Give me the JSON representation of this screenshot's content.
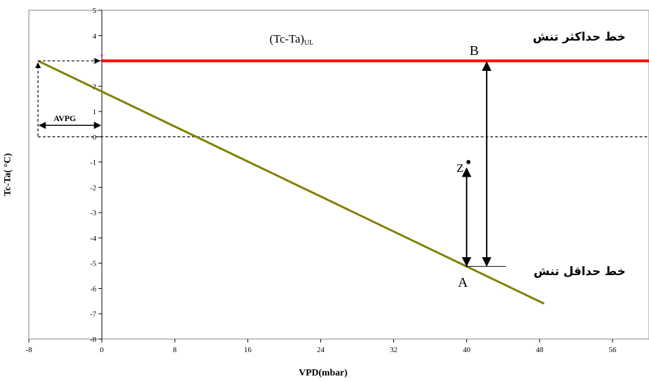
{
  "chart_data": {
    "type": "line",
    "title": "",
    "xlabel": "VPD(mbar)",
    "ylabel": "Tc-Ta( °C)",
    "xlim": [
      -8,
      60
    ],
    "ylim": [
      -8,
      5
    ],
    "x_ticks": [
      -8,
      0,
      8,
      16,
      24,
      32,
      40,
      48,
      56
    ],
    "y_ticks": [
      5,
      4,
      3,
      2,
      1,
      0,
      -1,
      -2,
      -3,
      -4,
      -5,
      -6,
      -7,
      -8
    ],
    "series": [
      {
        "name": "",
        "color": "#ff0000",
        "points": [
          [
            0,
            3
          ],
          [
            60,
            3
          ]
        ]
      },
      {
        "name": "",
        "color": "#808000",
        "points": [
          [
            -7,
            3
          ],
          [
            48.5,
            -6.6
          ]
        ]
      }
    ],
    "reference_line_y": 0,
    "annotations": {
      "upper_line_label": "(Tc-Ta)",
      "upper_line_label_sub": "UL",
      "upper_right_label": "خط حداکثر تنش",
      "lower_right_label": "خط حداقل تنش",
      "point_A": "A",
      "point_B": "B",
      "point_Z": "Z",
      "avpg": "AVPG"
    },
    "point_Z_xy": [
      40.2,
      -1
    ],
    "point_A_xy": [
      40,
      -5.1
    ],
    "point_B_xy": [
      42.2,
      3
    ]
  }
}
